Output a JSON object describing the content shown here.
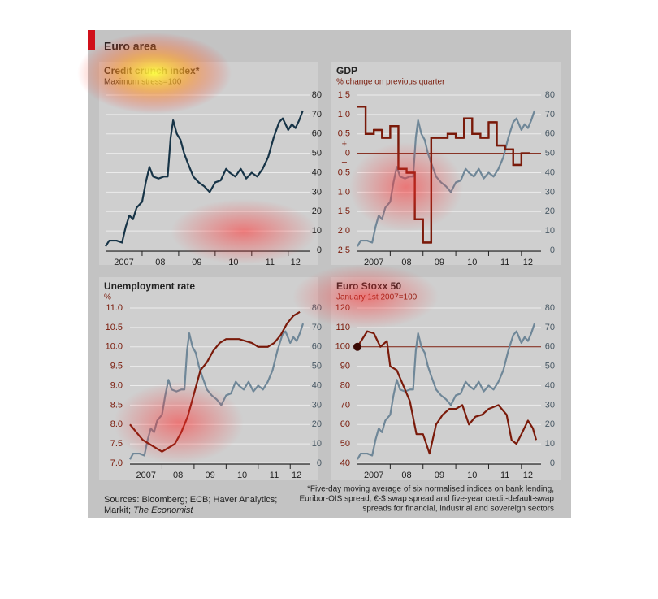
{
  "title": "Euro area",
  "sources": [
    "Sources: Bloomberg; ECB; Haver Analytics;",
    "Markit; ",
    "The Economist"
  ],
  "footnote": [
    "*Five-day moving average of six normalised indices on bank lending,",
    "Euribor-OIS spread, €-$ swap spread and five-year credit-default-swap",
    "spreads for financial, industrial and sovereign sectors"
  ],
  "chart_data": [
    {
      "type": "line",
      "title": "Credit crunch index*",
      "subtitle": "Maximum stress=100",
      "xlim": [
        2007,
        2012.45
      ],
      "xticks": [
        {
          "value": 2007.5,
          "label": "2007"
        },
        {
          "value": 2008.5,
          "label": "08"
        },
        {
          "value": 2009.5,
          "label": "09"
        },
        {
          "value": 2010.5,
          "label": "10"
        },
        {
          "value": 2011.5,
          "label": "11"
        },
        {
          "value": 2012.2,
          "label": "12"
        }
      ],
      "xminor": [
        2008,
        2009,
        2010,
        2011,
        2012
      ],
      "y2lim": [
        0,
        80
      ],
      "y2ticks": [
        0,
        10,
        20,
        30,
        40,
        50,
        60,
        70,
        80
      ],
      "grid": true,
      "series": [
        {
          "color": "#173447",
          "axis": "y2",
          "x": [
            2007.0,
            2007.1,
            2007.3,
            2007.45,
            2007.55,
            2007.65,
            2007.75,
            2007.85,
            2008.0,
            2008.1,
            2008.2,
            2008.3,
            2008.45,
            2008.6,
            2008.7,
            2008.78,
            2008.85,
            2008.95,
            2009.05,
            2009.15,
            2009.25,
            2009.4,
            2009.55,
            2009.7,
            2009.85,
            2010.0,
            2010.15,
            2010.3,
            2010.4,
            2010.55,
            2010.7,
            2010.85,
            2011.0,
            2011.15,
            2011.3,
            2011.45,
            2011.6,
            2011.75,
            2011.85,
            2012.0,
            2012.1,
            2012.2,
            2012.3,
            2012.4
          ],
          "values": [
            2,
            5,
            5,
            4,
            12,
            18,
            16,
            22,
            25,
            35,
            43,
            38,
            37,
            38,
            38,
            58,
            67,
            60,
            57,
            50,
            45,
            38,
            35,
            33,
            30,
            35,
            36,
            42,
            40,
            38,
            42,
            37,
            40,
            38,
            42,
            48,
            58,
            66,
            68,
            62,
            65,
            63,
            67,
            72
          ]
        }
      ]
    },
    {
      "type": "line",
      "title": "GDP",
      "subtitle": "% change on previous quarter",
      "xlim": [
        2007,
        2012.45
      ],
      "xticks": [
        {
          "value": 2007.5,
          "label": "2007"
        },
        {
          "value": 2008.5,
          "label": "08"
        },
        {
          "value": 2009.5,
          "label": "09"
        },
        {
          "value": 2010.5,
          "label": "10"
        },
        {
          "value": 2011.5,
          "label": "11"
        },
        {
          "value": 2012.2,
          "label": "12"
        }
      ],
      "xminor": [
        2008,
        2009,
        2010,
        2011,
        2012
      ],
      "ylim": [
        -2.5,
        1.5
      ],
      "yticks": [
        1.5,
        {
          "value": 1,
          "label": "1.0"
        },
        0.5,
        0,
        {
          "value": -0.5,
          "label": "0.5"
        },
        {
          "value": -1,
          "label": "1.0"
        },
        {
          "value": -1.5,
          "label": "1.5"
        },
        {
          "value": -2,
          "label": "2.0"
        },
        {
          "value": -2.5,
          "label": "2.5"
        }
      ],
      "axis_signs": [
        "+",
        "–"
      ],
      "reference_line": 0,
      "y2lim": [
        0,
        80
      ],
      "y2ticks": [
        0,
        10,
        20,
        30,
        40,
        50,
        60,
        70,
        80
      ],
      "grid": true,
      "series": [
        {
          "color": "#6f8798",
          "axis": "y2",
          "x": [
            2007.0,
            2007.1,
            2007.3,
            2007.45,
            2007.55,
            2007.65,
            2007.75,
            2007.85,
            2008.0,
            2008.1,
            2008.2,
            2008.3,
            2008.45,
            2008.6,
            2008.7,
            2008.78,
            2008.85,
            2008.95,
            2009.05,
            2009.15,
            2009.25,
            2009.4,
            2009.55,
            2009.7,
            2009.85,
            2010.0,
            2010.15,
            2010.3,
            2010.4,
            2010.55,
            2010.7,
            2010.85,
            2011.0,
            2011.15,
            2011.3,
            2011.45,
            2011.6,
            2011.75,
            2011.85,
            2012.0,
            2012.1,
            2012.2,
            2012.3,
            2012.4
          ],
          "values": [
            2,
            5,
            5,
            4,
            12,
            18,
            16,
            22,
            25,
            35,
            43,
            38,
            37,
            38,
            38,
            58,
            67,
            60,
            57,
            50,
            45,
            38,
            35,
            33,
            30,
            35,
            36,
            42,
            40,
            38,
            42,
            37,
            40,
            38,
            42,
            48,
            58,
            66,
            68,
            62,
            65,
            63,
            67,
            72
          ]
        },
        {
          "color": "#7a1a0a",
          "axis": "y",
          "style": "step",
          "step": 0.25,
          "x": [
            2007,
            2007.25,
            2007.5,
            2007.75,
            2008,
            2008.25,
            2008.5,
            2008.75,
            2009,
            2009.25,
            2009.5,
            2009.75,
            2010,
            2010.25,
            2010.5,
            2010.75,
            2011,
            2011.25,
            2011.5,
            2011.75,
            2012
          ],
          "values": [
            1.2,
            0.5,
            0.6,
            0.4,
            0.7,
            -0.4,
            -0.5,
            -1.7,
            -2.3,
            0.4,
            0.4,
            0.5,
            0.4,
            0.9,
            0.5,
            0.4,
            0.8,
            0.2,
            0.1,
            -0.3,
            0.0
          ]
        }
      ]
    },
    {
      "type": "line",
      "title": "Unemployment rate",
      "subtitle": "%",
      "xlim": [
        2007,
        2012.45
      ],
      "xticks": [
        {
          "value": 2007.5,
          "label": "2007"
        },
        {
          "value": 2008.5,
          "label": "08"
        },
        {
          "value": 2009.5,
          "label": "09"
        },
        {
          "value": 2010.5,
          "label": "10"
        },
        {
          "value": 2011.5,
          "label": "11"
        },
        {
          "value": 2012.2,
          "label": "12"
        }
      ],
      "xminor": [
        2008,
        2009,
        2010,
        2011,
        2012
      ],
      "ylim": [
        7,
        11
      ],
      "yticks": [
        {
          "value": 7,
          "label": "7.0"
        },
        7.5,
        {
          "value": 8,
          "label": "8.0"
        },
        8.5,
        {
          "value": 9,
          "label": "9.0"
        },
        9.5,
        {
          "value": 10,
          "label": "10.0"
        },
        10.5,
        {
          "value": 11,
          "label": "11.0"
        }
      ],
      "y2lim": [
        0,
        80
      ],
      "y2ticks": [
        0,
        10,
        20,
        30,
        40,
        50,
        60,
        70,
        80
      ],
      "grid": true,
      "series": [
        {
          "color": "#6f8798",
          "axis": "y2",
          "x": [
            2007.0,
            2007.1,
            2007.3,
            2007.45,
            2007.55,
            2007.65,
            2007.75,
            2007.85,
            2008.0,
            2008.1,
            2008.2,
            2008.3,
            2008.45,
            2008.6,
            2008.7,
            2008.78,
            2008.85,
            2008.95,
            2009.05,
            2009.15,
            2009.25,
            2009.4,
            2009.55,
            2009.7,
            2009.85,
            2010.0,
            2010.15,
            2010.3,
            2010.4,
            2010.55,
            2010.7,
            2010.85,
            2011.0,
            2011.15,
            2011.3,
            2011.45,
            2011.6,
            2011.75,
            2011.85,
            2012.0,
            2012.1,
            2012.2,
            2012.3,
            2012.4
          ],
          "values": [
            2,
            5,
            5,
            4,
            12,
            18,
            16,
            22,
            25,
            35,
            43,
            38,
            37,
            38,
            38,
            58,
            67,
            60,
            57,
            50,
            45,
            38,
            35,
            33,
            30,
            35,
            36,
            42,
            40,
            38,
            42,
            37,
            40,
            38,
            42,
            48,
            58,
            66,
            68,
            62,
            65,
            63,
            67,
            72
          ]
        },
        {
          "color": "#7a1a0a",
          "axis": "y",
          "x": [
            2007.0,
            2007.2,
            2007.4,
            2007.6,
            2007.8,
            2008.0,
            2008.2,
            2008.4,
            2008.6,
            2008.8,
            2009.0,
            2009.2,
            2009.4,
            2009.6,
            2009.8,
            2010.0,
            2010.4,
            2010.8,
            2011.0,
            2011.3,
            2011.5,
            2011.7,
            2011.9,
            2012.1,
            2012.3
          ],
          "values": [
            8.0,
            7.8,
            7.6,
            7.5,
            7.4,
            7.3,
            7.4,
            7.5,
            7.8,
            8.2,
            8.8,
            9.4,
            9.6,
            9.9,
            10.1,
            10.2,
            10.2,
            10.1,
            10.0,
            10.0,
            10.1,
            10.3,
            10.6,
            10.8,
            10.9
          ]
        }
      ]
    },
    {
      "type": "line",
      "title": "Euro Stoxx 50",
      "subtitle": "January 1st 2007=100",
      "xlim": [
        2007,
        2012.45
      ],
      "xticks": [
        {
          "value": 2007.5,
          "label": "2007"
        },
        {
          "value": 2008.5,
          "label": "08"
        },
        {
          "value": 2009.5,
          "label": "09"
        },
        {
          "value": 2010.5,
          "label": "10"
        },
        {
          "value": 2011.5,
          "label": "11"
        },
        {
          "value": 2012.2,
          "label": "12"
        }
      ],
      "xminor": [
        2008,
        2009,
        2010,
        2011,
        2012
      ],
      "ylim": [
        40,
        120
      ],
      "yticks": [
        40,
        50,
        60,
        70,
        80,
        90,
        100,
        110,
        120
      ],
      "reference_line": 100,
      "y2lim": [
        0,
        80
      ],
      "y2ticks": [
        0,
        10,
        20,
        30,
        40,
        50,
        60,
        70,
        80
      ],
      "grid": true,
      "series": [
        {
          "color": "#6f8798",
          "axis": "y2",
          "x": [
            2007.0,
            2007.1,
            2007.3,
            2007.45,
            2007.55,
            2007.65,
            2007.75,
            2007.85,
            2008.0,
            2008.1,
            2008.2,
            2008.3,
            2008.45,
            2008.6,
            2008.7,
            2008.78,
            2008.85,
            2008.95,
            2009.05,
            2009.15,
            2009.25,
            2009.4,
            2009.55,
            2009.7,
            2009.85,
            2010.0,
            2010.15,
            2010.3,
            2010.4,
            2010.55,
            2010.7,
            2010.85,
            2011.0,
            2011.15,
            2011.3,
            2011.45,
            2011.6,
            2011.75,
            2011.85,
            2012.0,
            2012.1,
            2012.2,
            2012.3,
            2012.4
          ],
          "values": [
            2,
            5,
            5,
            4,
            12,
            18,
            16,
            22,
            25,
            35,
            43,
            38,
            37,
            38,
            38,
            58,
            67,
            60,
            57,
            50,
            45,
            38,
            35,
            33,
            30,
            35,
            36,
            42,
            40,
            38,
            42,
            37,
            40,
            38,
            42,
            48,
            58,
            66,
            68,
            62,
            65,
            63,
            67,
            72
          ]
        },
        {
          "color": "#7a1a0a",
          "axis": "y",
          "start_marker": true,
          "x": [
            2007.0,
            2007.3,
            2007.5,
            2007.7,
            2007.9,
            2008.0,
            2008.2,
            2008.4,
            2008.6,
            2008.8,
            2009.0,
            2009.2,
            2009.4,
            2009.6,
            2009.8,
            2010.0,
            2010.2,
            2010.4,
            2010.6,
            2010.8,
            2011.0,
            2011.3,
            2011.55,
            2011.7,
            2011.85,
            2012.0,
            2012.2,
            2012.35,
            2012.45
          ],
          "values": [
            100,
            108,
            107,
            100,
            103,
            90,
            88,
            80,
            72,
            55,
            55,
            45,
            60,
            65,
            68,
            68,
            70,
            60,
            64,
            65,
            68,
            70,
            65,
            52,
            50,
            55,
            62,
            58,
            52
          ]
        }
      ]
    }
  ]
}
